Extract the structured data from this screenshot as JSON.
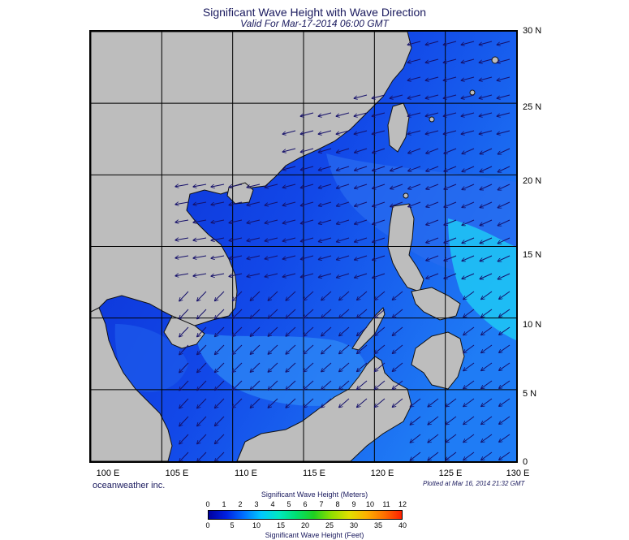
{
  "title": "Significant Wave Height with Wave Direction",
  "subtitle": "Valid For Mar-17-2014 06:00 GMT",
  "credit": "oceanweather inc.",
  "plotted": "Plotted at Mar 16, 2014 21:32 GMT",
  "map": {
    "lon_range": [
      100,
      130
    ],
    "lat_range": [
      0,
      30
    ],
    "lon_labels": [
      "100 E",
      "105 E",
      "110 E",
      "115 E",
      "120 E",
      "125 E",
      "130 E"
    ],
    "lat_labels": [
      "30 N",
      "25 N",
      "20 N",
      "15 N",
      "10 N",
      "5 N",
      "0"
    ],
    "land_color": "#bdbdbd",
    "grid": true
  },
  "colorbar": {
    "title_top": "Significant Wave Height (Meters)",
    "title_bottom": "Significant Wave Height (Feet)",
    "meters_ticks": [
      "0",
      "1",
      "2",
      "3",
      "4",
      "5",
      "6",
      "7",
      "8",
      "9",
      "10",
      "11",
      "12"
    ],
    "feet_ticks": [
      "0",
      "5",
      "10",
      "15",
      "20",
      "25",
      "30",
      "35",
      "40"
    ],
    "colors": [
      "#0000a0",
      "#0020e0",
      "#0070ff",
      "#00c8ff",
      "#00e8c0",
      "#00e070",
      "#20d020",
      "#90e000",
      "#e0e000",
      "#ffb000",
      "#ff7000",
      "#ff2000"
    ]
  }
}
